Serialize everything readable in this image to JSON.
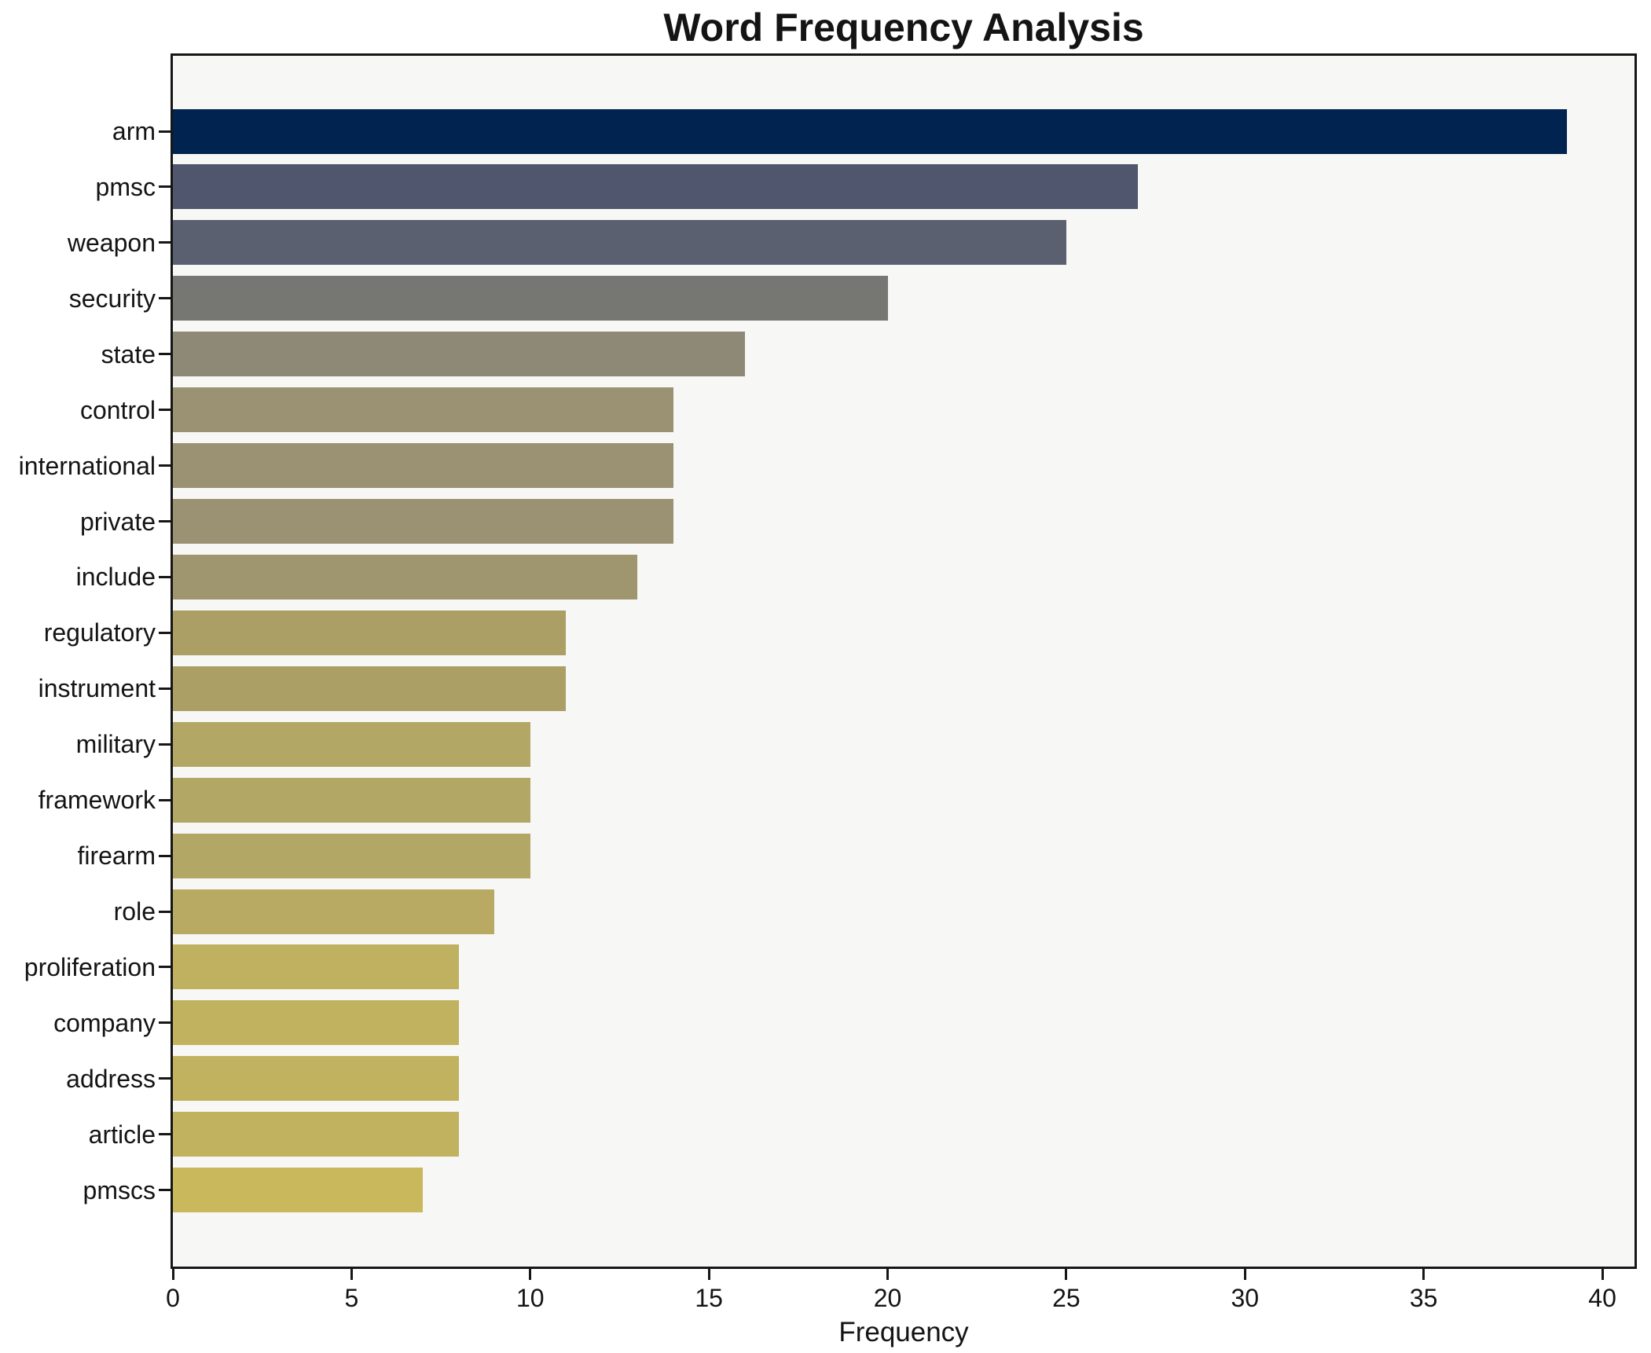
{
  "chart_data": {
    "type": "bar",
    "orientation": "horizontal",
    "title": "Word Frequency Analysis",
    "xlabel": "Frequency",
    "ylabel": "",
    "categories": [
      "arm",
      "pmsc",
      "weapon",
      "security",
      "state",
      "control",
      "international",
      "private",
      "include",
      "regulatory",
      "instrument",
      "military",
      "framework",
      "firearm",
      "role",
      "proliferation",
      "company",
      "address",
      "article",
      "pmscs"
    ],
    "values": [
      39,
      27,
      25,
      20,
      16,
      14,
      14,
      14,
      13,
      11,
      11,
      10,
      10,
      10,
      9,
      8,
      8,
      8,
      8,
      7
    ],
    "bar_colors": [
      "#01234f",
      "#4f566e",
      "#5a606f",
      "#767672",
      "#8e8977",
      "#9a9272",
      "#9a9272",
      "#9a9272",
      "#9f9670",
      "#ac9f66",
      "#ac9f66",
      "#b2a765",
      "#b2a765",
      "#b2a765",
      "#b8aa62",
      "#bfb160",
      "#c1b25f",
      "#c1b25f",
      "#c1b25f",
      "#c9b85c"
    ],
    "xticks": [
      0,
      5,
      10,
      15,
      20,
      25,
      30,
      35,
      40
    ],
    "xlim": [
      0,
      40.9
    ],
    "grid": false,
    "legend": null,
    "colors": {
      "plot_background": "#f7f7f5",
      "figure_background": "#ffffff",
      "frame": "#161616",
      "text": "#141414"
    }
  }
}
